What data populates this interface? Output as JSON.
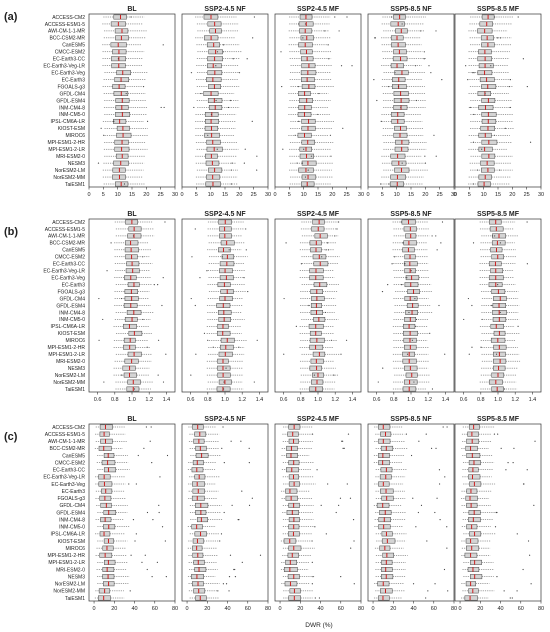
{
  "figure": {
    "bottom_xlabel": "DWR (%)"
  },
  "chart_data": [
    {
      "type": "boxplot",
      "panel_label": "(a)",
      "titles": [
        "BL",
        "SSP2-4.5 NF",
        "SSP2-4.5 MF",
        "SSP5-8.5 NF",
        "SSP5-8.5 MF"
      ],
      "xlim": [
        0,
        30
      ],
      "xticks": [
        0,
        5,
        10,
        15,
        20,
        25,
        30
      ],
      "models": [
        "ACCESS-CM2",
        "ACCESS-ESM1-5",
        "AWI-CM-1-1-MR",
        "BCC-CSM2-MR",
        "CanESM5",
        "CMCC-ESM2",
        "EC-Earth3-CC",
        "EC-Earth3-Veg-LR",
        "EC-Earth3-Veg",
        "EC-Earth3",
        "FGOALS-g3",
        "GFDL-CM4",
        "GFDL-ESM4",
        "INM-CM4-8",
        "INM-CM5-0",
        "IPSL-CM6A-LR",
        "KIOST-ESM",
        "MIROC6",
        "MPI-ESM1-2-HR",
        "MPI-ESM1-2-LR",
        "MRI-ESM2-0",
        "NESM3",
        "NorESM2-LM",
        "NorESM2-MM",
        "TaiESM1"
      ],
      "box_summary": {
        "median": 11,
        "q1": 9,
        "q3": 13,
        "whisker_low": 5,
        "whisker_high": 19,
        "outlier_range": [
          2,
          27
        ]
      },
      "grid": false
    },
    {
      "type": "boxplot",
      "panel_label": "(b)",
      "titles": [
        "BL",
        "SSP2-4.5 NF",
        "SSP2-4.5 MF",
        "SSP5-8.5 NF",
        "SSP5-8.5 MF"
      ],
      "xlim": [
        0.5,
        1.5
      ],
      "xticks": [
        0.6,
        0.8,
        1.0,
        1.2,
        1.4
      ],
      "models": [
        "ACCESS-CM2",
        "ACCESS-ESM1-5",
        "AWI-CM-1-1-MR",
        "BCC-CSM2-MR",
        "CanESM5",
        "CMCC-ESM2",
        "EC-Earth3-CC",
        "EC-Earth3-Veg-LR",
        "EC-Earth3-Veg",
        "EC-Earth3",
        "FGOALS-g3",
        "GFDL-CM4",
        "GFDL-ESM4",
        "INM-CM4-8",
        "INM-CM5-0",
        "IPSL-CM6A-LR",
        "KIOST-ESM",
        "MIROC6",
        "MPI-ESM1-2-HR",
        "MPI-ESM1-2-LR",
        "MRI-ESM2-0",
        "NESM3",
        "NorESM2-LM",
        "NorESM2-MM",
        "TaiESM1"
      ],
      "box_summary": {
        "median": 1.0,
        "q1": 0.94,
        "q3": 1.06,
        "whisker_low": 0.8,
        "whisker_high": 1.2,
        "outlier_range": [
          0.6,
          1.4
        ]
      },
      "grid": false
    },
    {
      "type": "boxplot",
      "panel_label": "(c)",
      "titles": [
        "BL",
        "SSP2-4.5 NF",
        "SSP2-4.5 MF",
        "SSP5-8.5 NF",
        "SSP5-8.5 MF"
      ],
      "xlim": [
        -5,
        80
      ],
      "xticks": [
        0,
        20,
        40,
        60,
        80
      ],
      "models": [
        "ACCESS-CM2",
        "ACCESS-ESM1-5",
        "AWI-CM-1-1-MR",
        "BCC-CSM2-MR",
        "CanESM5",
        "CMCC-ESM2",
        "EC-Earth3-CC",
        "EC-Earth3-Veg-LR",
        "EC-Earth3-Veg",
        "EC-Earth3",
        "FGOALS-g3",
        "GFDL-CM4",
        "GFDL-ESM4",
        "INM-CM4-8",
        "INM-CM5-0",
        "IPSL-CM6A-LR",
        "KIOST-ESM",
        "MIROC6",
        "MPI-ESM1-2-HR",
        "MPI-ESM1-2-LR",
        "MRI-ESM2-0",
        "NESM3",
        "NorESM2-LM",
        "NorESM2-MM",
        "TaiESM1"
      ],
      "box_summary": {
        "median": 12,
        "q1": 8,
        "q3": 17,
        "whisker_low": 2,
        "whisker_high": 30,
        "outlier_range": [
          30,
          75
        ]
      },
      "xlabel": "DWR (%)",
      "grid": false
    }
  ],
  "colors": {
    "box_fill": "#d4d4d4",
    "box_edge": "#444444",
    "median": "#cc1f1f",
    "axis": "#333333",
    "text": "#222222"
  }
}
